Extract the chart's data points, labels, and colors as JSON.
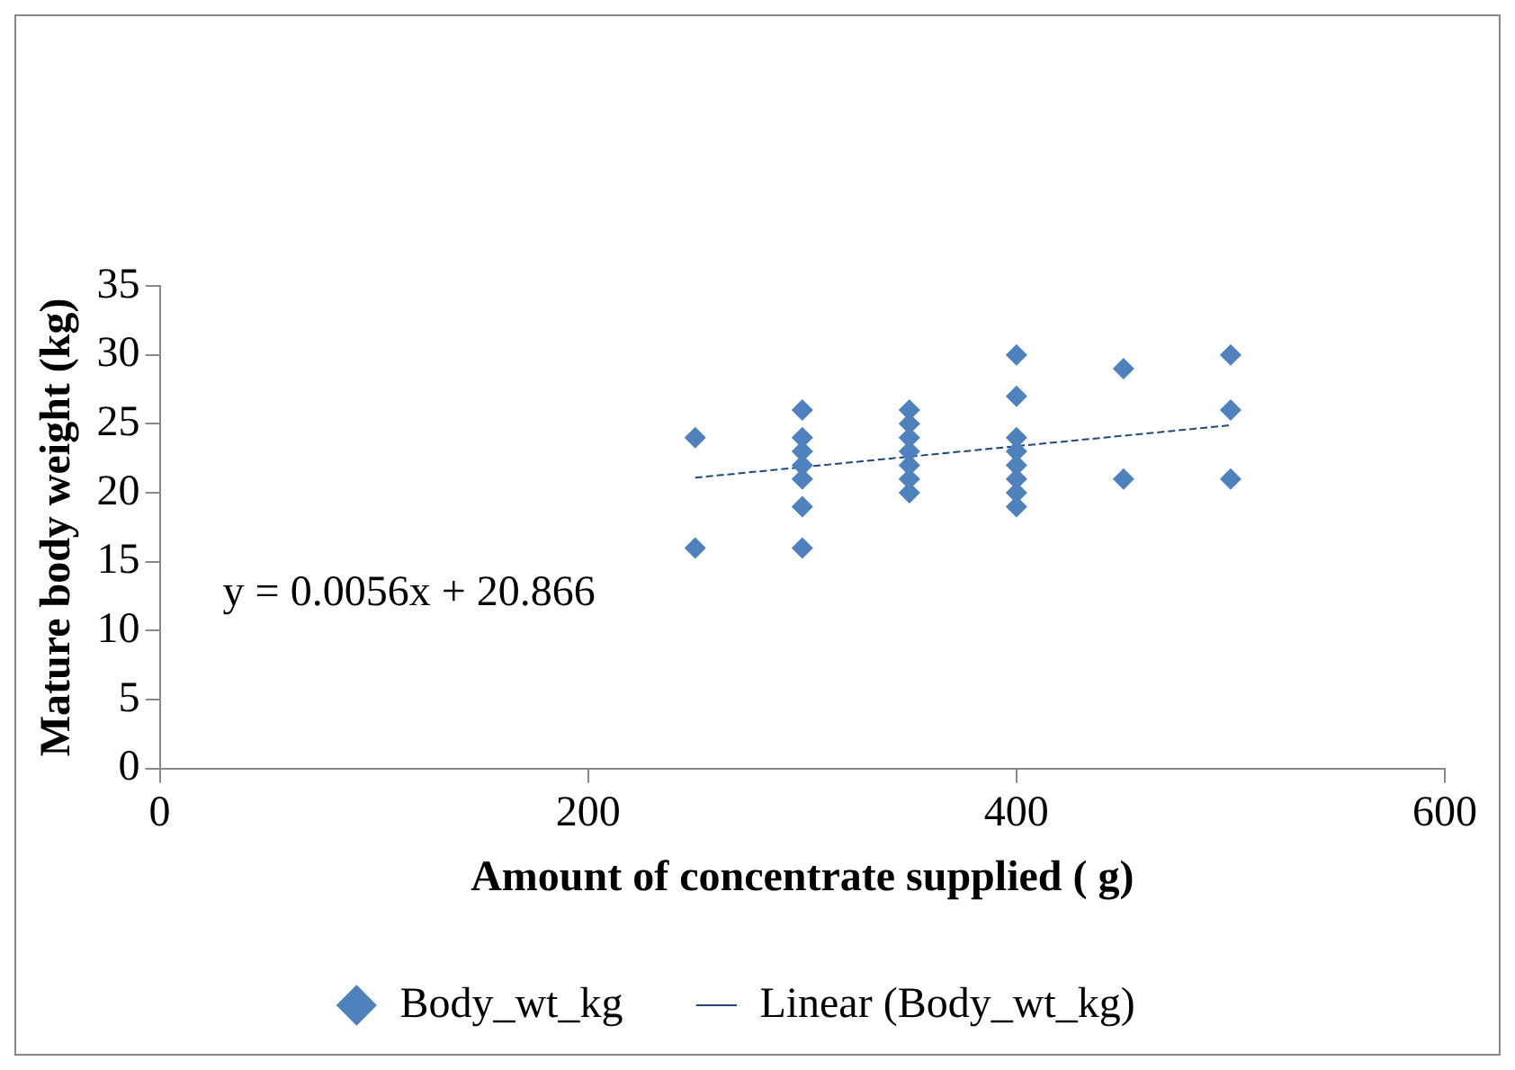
{
  "chart_data": {
    "type": "scatter",
    "xlabel": "Amount of concentrate supplied ( g)",
    "ylabel": "Mature body weight (kg)",
    "xlim": [
      0,
      600
    ],
    "xticks": [
      0,
      200,
      400,
      600
    ],
    "ylim": [
      0,
      35
    ],
    "yticks": [
      0,
      5,
      10,
      15,
      20,
      25,
      30,
      35
    ],
    "grid": false,
    "legend": "bottom",
    "marker": "diamond",
    "annotations": [
      "y = 0.0056x + 20.866"
    ],
    "series": [
      {
        "name": "Body_wt_kg",
        "color": "#4f81bd",
        "x": [
          250,
          250,
          300,
          300,
          300,
          300,
          300,
          300,
          300,
          350,
          350,
          350,
          350,
          350,
          350,
          350,
          400,
          400,
          400,
          400,
          400,
          400,
          400,
          400,
          450,
          450,
          500,
          500,
          500
        ],
        "values": [
          24,
          16,
          26,
          24,
          23,
          22,
          21,
          19,
          16,
          26,
          25,
          24,
          23,
          22,
          21,
          20,
          30,
          27,
          24,
          23,
          22,
          21,
          20,
          19,
          29,
          21,
          30,
          26,
          21
        ]
      },
      {
        "name": "Linear (Body_wt_kg)",
        "type": "line",
        "color": "#1f497d",
        "line_style": "dashed",
        "marker": "none",
        "x": [
          250,
          500
        ],
        "values": [
          21.1,
          24.9
        ]
      }
    ]
  }
}
